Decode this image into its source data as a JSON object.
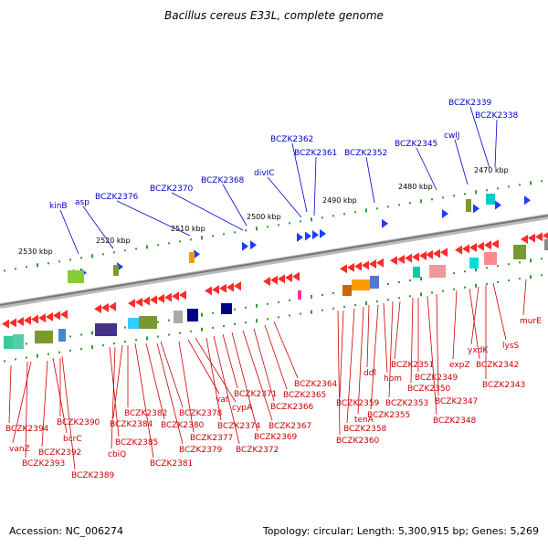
{
  "title": "Bacillus cereus E33L, complete genome",
  "accession": "Accession: NC_006274",
  "topology": "Topology: circular; Length: 5,300,915 bp; Genes: 5,269",
  "colors": {
    "upper_label": "#0000cc",
    "lower_label": "#cc0000",
    "backbone": "#888888",
    "tick": "#339933"
  },
  "kbp_ticks": [
    "2530 kbp",
    "2520 kbp",
    "2510 kbp",
    "2500 kbp",
    "2490 kbp",
    "2480 kbp",
    "2470 kbp"
  ],
  "upper_genes": [
    "kinB",
    "asp",
    "BCZK2376",
    "BCZK2370",
    "BCZK2368",
    "divIC",
    "BCZK2362",
    "BCZK2361",
    "BCZK2352",
    "BCZK2345",
    "cwlJ",
    "BCZK2339",
    "BCZK2338"
  ],
  "lower_genes": [
    "BCZK2394",
    "vanZ",
    "BCZK2393",
    "BCZK2392",
    "bcrC",
    "BCZK2390",
    "BCZK2389",
    "BCZK2385",
    "cbiQ",
    "BCZK2384",
    "BCZK2382",
    "BCZK2381",
    "BCZK2380",
    "BCZK2379",
    "BCZK2378",
    "BCZK2377",
    "vat",
    "cypA",
    "BCZK2374",
    "BCZK2372",
    "BCZK2371",
    "BCZK2369",
    "BCZK2367",
    "BCZK2366",
    "BCZK2365",
    "BCZK2364",
    "BCZK2360",
    "BCZK2359",
    "BCZK2358",
    "tenA",
    "ddl",
    "BCZK2355",
    "hom",
    "BCZK2353",
    "BCZK2351",
    "BCZK2350",
    "BCZK2349",
    "BCZK2348",
    "BCZK2347",
    "expZ",
    "BCZK2342",
    "yxdK",
    "BCZK2343",
    "lysS",
    "murE"
  ]
}
